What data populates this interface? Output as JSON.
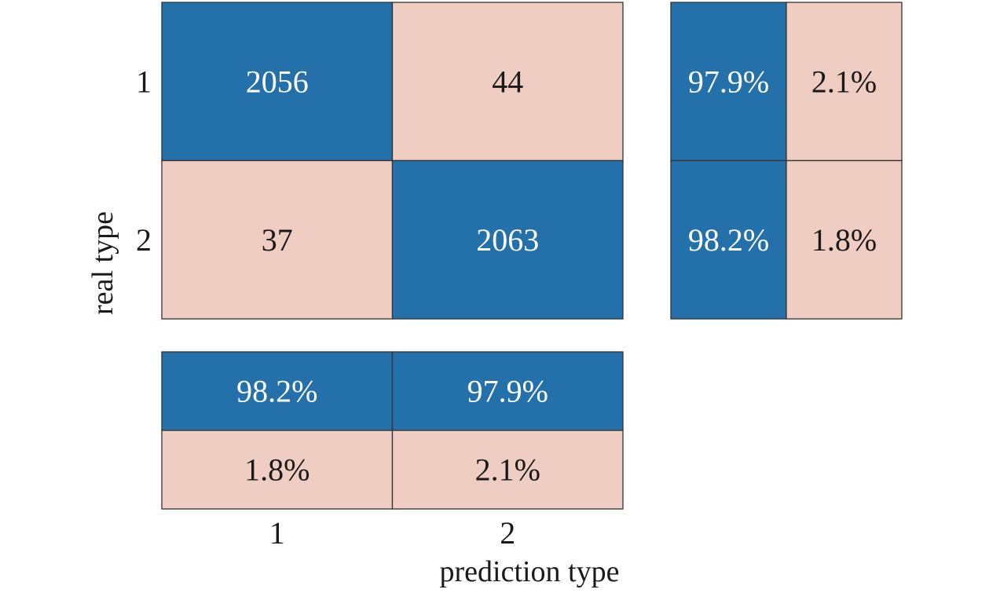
{
  "chart_data": {
    "type": "heatmap",
    "title": "",
    "xlabel": "prediction type",
    "ylabel": "real type",
    "row_labels": [
      "1",
      "2"
    ],
    "col_labels": [
      "1",
      "2"
    ],
    "matrix": [
      [
        2056,
        44
      ],
      [
        37,
        2063
      ]
    ],
    "row_summary": [
      [
        "97.9%",
        "2.1%"
      ],
      [
        "98.2%",
        "1.8%"
      ]
    ],
    "column_summary": [
      [
        "98.2%",
        "97.9%"
      ],
      [
        "1.8%",
        "2.1%"
      ]
    ],
    "colors": {
      "correct": "#2470ab",
      "incorrect": "#f0cdc2",
      "text_on_correct": "#ffffff",
      "text_on_incorrect": "#1a1a1a",
      "border": "#333333"
    }
  }
}
